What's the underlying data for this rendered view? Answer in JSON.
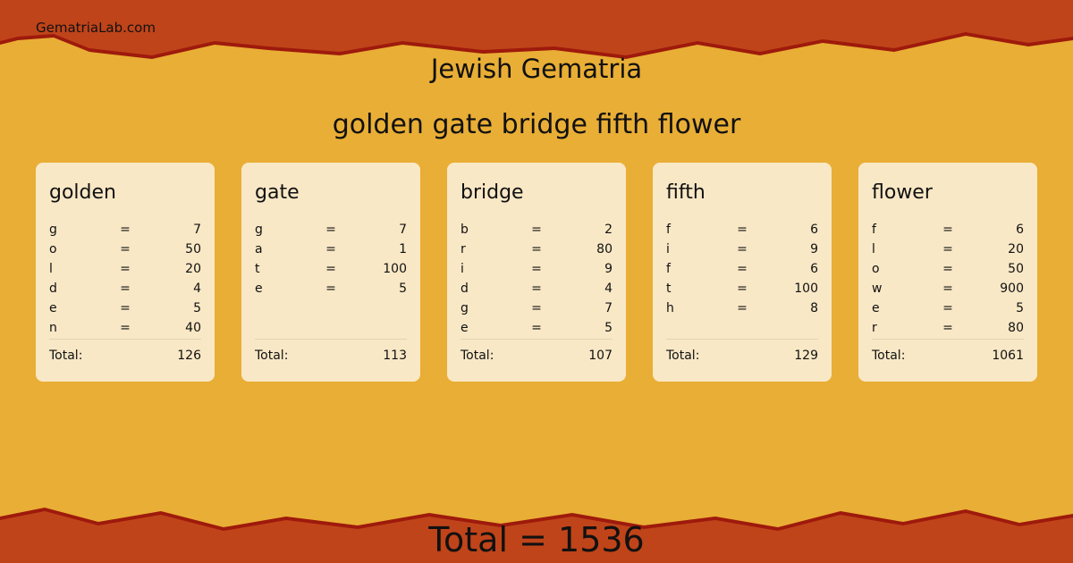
{
  "site": "GematriaLab.com",
  "title": "Jewish Gematria",
  "phrase": "golden gate bridge fifth flower",
  "colors": {
    "background": "#e9ae35",
    "band": "#c0441a",
    "card": "#f9e8c6"
  },
  "words": [
    {
      "word": "golden",
      "letters": [
        {
          "l": "g",
          "eq": "=",
          "v": "7"
        },
        {
          "l": "o",
          "eq": "=",
          "v": "50"
        },
        {
          "l": "l",
          "eq": "=",
          "v": "20"
        },
        {
          "l": "d",
          "eq": "=",
          "v": "4"
        },
        {
          "l": "e",
          "eq": "=",
          "v": "5"
        },
        {
          "l": "n",
          "eq": "=",
          "v": "40"
        }
      ],
      "total_label": "Total:",
      "total": "126"
    },
    {
      "word": "gate",
      "letters": [
        {
          "l": "g",
          "eq": "=",
          "v": "7"
        },
        {
          "l": "a",
          "eq": "=",
          "v": "1"
        },
        {
          "l": "t",
          "eq": "=",
          "v": "100"
        },
        {
          "l": "e",
          "eq": "=",
          "v": "5"
        }
      ],
      "total_label": "Total:",
      "total": "113"
    },
    {
      "word": "bridge",
      "letters": [
        {
          "l": "b",
          "eq": "=",
          "v": "2"
        },
        {
          "l": "r",
          "eq": "=",
          "v": "80"
        },
        {
          "l": "i",
          "eq": "=",
          "v": "9"
        },
        {
          "l": "d",
          "eq": "=",
          "v": "4"
        },
        {
          "l": "g",
          "eq": "=",
          "v": "7"
        },
        {
          "l": "e",
          "eq": "=",
          "v": "5"
        }
      ],
      "total_label": "Total:",
      "total": "107"
    },
    {
      "word": "fifth",
      "letters": [
        {
          "l": "f",
          "eq": "=",
          "v": "6"
        },
        {
          "l": "i",
          "eq": "=",
          "v": "9"
        },
        {
          "l": "f",
          "eq": "=",
          "v": "6"
        },
        {
          "l": "t",
          "eq": "=",
          "v": "100"
        },
        {
          "l": "h",
          "eq": "=",
          "v": "8"
        }
      ],
      "total_label": "Total:",
      "total": "129"
    },
    {
      "word": "flower",
      "letters": [
        {
          "l": "f",
          "eq": "=",
          "v": "6"
        },
        {
          "l": "l",
          "eq": "=",
          "v": "20"
        },
        {
          "l": "o",
          "eq": "=",
          "v": "50"
        },
        {
          "l": "w",
          "eq": "=",
          "v": "900"
        },
        {
          "l": "e",
          "eq": "=",
          "v": "5"
        },
        {
          "l": "r",
          "eq": "=",
          "v": "80"
        }
      ],
      "total_label": "Total:",
      "total": "1061"
    }
  ],
  "grand_total": "Total = 1536"
}
